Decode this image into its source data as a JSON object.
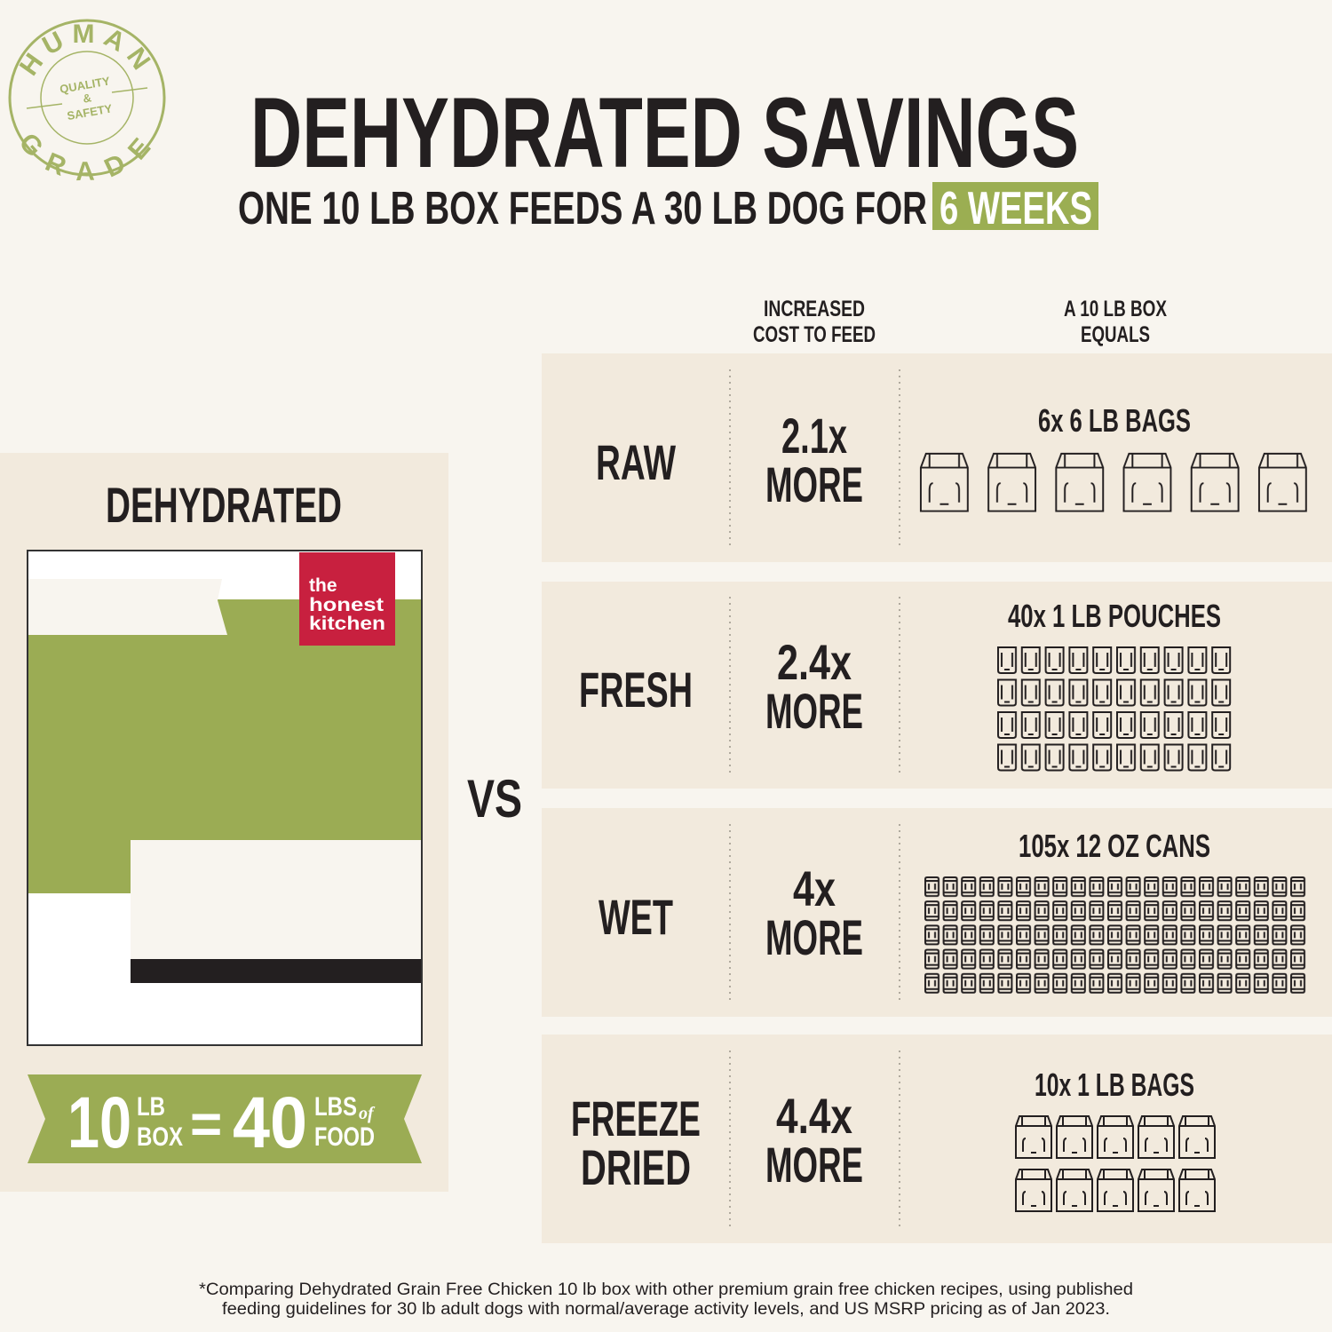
{
  "badge": {
    "top": "HUMAN",
    "middle": [
      "QUALITY",
      "&",
      "SAFETY"
    ],
    "bottom": "GRADE"
  },
  "header": {
    "title": "DEHYDRATED SAVINGS",
    "subtitle": "ONE 10 LB BOX FEEDS A 30 LB DOG FOR",
    "highlight": "6 WEEKS"
  },
  "left_panel": {
    "title": "DEHYDRATED",
    "logo": [
      "the",
      "honest",
      "kitchen"
    ],
    "banner": {
      "amount": "10",
      "unit_top": "LB",
      "unit_bottom": "BOX",
      "equals": "=",
      "result": "40",
      "result_top": "LBS",
      "result_of": "of",
      "result_bottom": "FOOD"
    }
  },
  "vs": "VS",
  "table": {
    "headers": [
      [
        "INCREASED",
        "COST TO FEED"
      ],
      [
        "A 10 LB BOX",
        "EQUALS"
      ]
    ],
    "rows": [
      {
        "label": [
          "RAW"
        ],
        "cost": [
          "2.1x",
          "MORE"
        ],
        "equals": "6x 6 LB BAGS"
      },
      {
        "label": [
          "FRESH"
        ],
        "cost": [
          "2.4x",
          "MORE"
        ],
        "equals": "40x 1 LB POUCHES"
      },
      {
        "label": [
          "WET"
        ],
        "cost": [
          "4x",
          "MORE"
        ],
        "equals": "105x 12 OZ CANS"
      },
      {
        "label": [
          "FREEZE",
          "DRIED"
        ],
        "cost": [
          "4.4x",
          "MORE"
        ],
        "equals": "10x 1 LB BAGS"
      }
    ]
  },
  "footnote": [
    "*Comparing Dehydrated Grain Free Chicken 10 lb box with other premium grain free chicken recipes, using published",
    "feeding guidelines for 30 lb adult dogs with normal/average activity levels, and US MSRP pricing as of Jan 2023."
  ]
}
